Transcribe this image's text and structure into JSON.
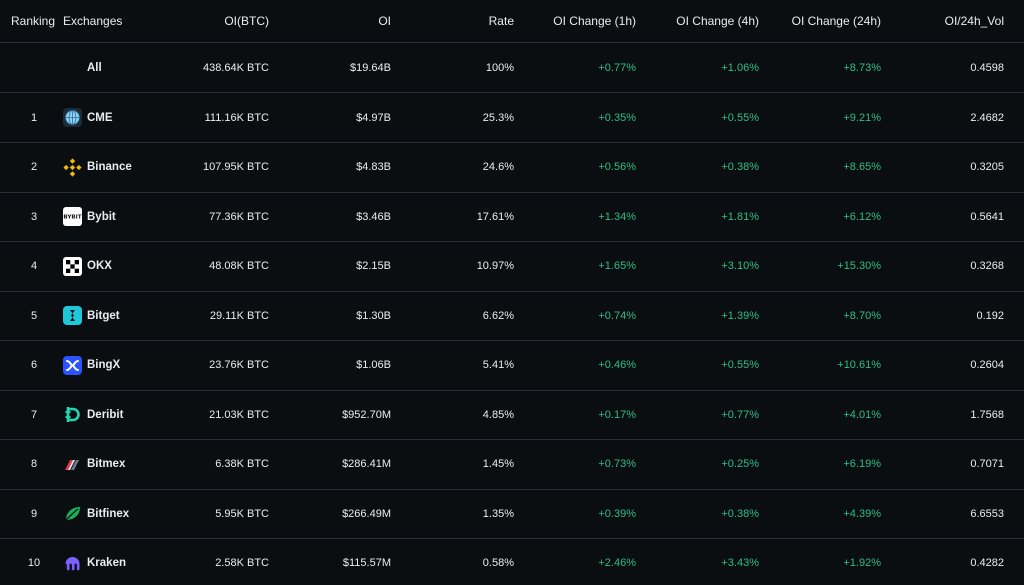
{
  "columns": {
    "ranking": "Ranking",
    "exchanges": "Exchanges",
    "oi_btc": "OI(BTC)",
    "oi": "OI",
    "rate": "Rate",
    "oi_1h": "OI Change (1h)",
    "oi_4h": "OI Change (4h)",
    "oi_24h": "OI Change (24h)",
    "oi_vol": "OI/24h_Vol"
  },
  "all_row": {
    "name": "All",
    "oi_btc": "438.64K BTC",
    "oi": "$19.64B",
    "rate": "100%",
    "oi_1h": "+0.77%",
    "oi_4h": "+1.06%",
    "oi_24h": "+8.73%",
    "oi_vol": "0.4598"
  },
  "rows": [
    {
      "rank": "1",
      "name": "CME",
      "icon": "cme-logo-icon",
      "oi_btc": "111.16K BTC",
      "oi": "$4.97B",
      "rate": "25.3%",
      "oi_1h": "+0.35%",
      "oi_4h": "+0.55%",
      "oi_24h": "+9.21%",
      "oi_vol": "2.4682"
    },
    {
      "rank": "2",
      "name": "Binance",
      "icon": "binance-logo-icon",
      "oi_btc": "107.95K BTC",
      "oi": "$4.83B",
      "rate": "24.6%",
      "oi_1h": "+0.56%",
      "oi_4h": "+0.38%",
      "oi_24h": "+8.65%",
      "oi_vol": "0.3205"
    },
    {
      "rank": "3",
      "name": "Bybit",
      "icon": "bybit-logo-icon",
      "oi_btc": "77.36K BTC",
      "oi": "$3.46B",
      "rate": "17.61%",
      "oi_1h": "+1.34%",
      "oi_4h": "+1.81%",
      "oi_24h": "+6.12%",
      "oi_vol": "0.5641"
    },
    {
      "rank": "4",
      "name": "OKX",
      "icon": "okx-logo-icon",
      "oi_btc": "48.08K BTC",
      "oi": "$2.15B",
      "rate": "10.97%",
      "oi_1h": "+1.65%",
      "oi_4h": "+3.10%",
      "oi_24h": "+15.30%",
      "oi_vol": "0.3268"
    },
    {
      "rank": "5",
      "name": "Bitget",
      "icon": "bitget-logo-icon",
      "oi_btc": "29.11K BTC",
      "oi": "$1.30B",
      "rate": "6.62%",
      "oi_1h": "+0.74%",
      "oi_4h": "+1.39%",
      "oi_24h": "+8.70%",
      "oi_vol": "0.192"
    },
    {
      "rank": "6",
      "name": "BingX",
      "icon": "bingx-logo-icon",
      "oi_btc": "23.76K BTC",
      "oi": "$1.06B",
      "rate": "5.41%",
      "oi_1h": "+0.46%",
      "oi_4h": "+0.55%",
      "oi_24h": "+10.61%",
      "oi_vol": "0.2604"
    },
    {
      "rank": "7",
      "name": "Deribit",
      "icon": "deribit-logo-icon",
      "oi_btc": "21.03K BTC",
      "oi": "$952.70M",
      "rate": "4.85%",
      "oi_1h": "+0.17%",
      "oi_4h": "+0.77%",
      "oi_24h": "+4.01%",
      "oi_vol": "1.7568"
    },
    {
      "rank": "8",
      "name": "Bitmex",
      "icon": "bitmex-logo-icon",
      "oi_btc": "6.38K BTC",
      "oi": "$286.41M",
      "rate": "1.45%",
      "oi_1h": "+0.73%",
      "oi_4h": "+0.25%",
      "oi_24h": "+6.19%",
      "oi_vol": "0.7071"
    },
    {
      "rank": "9",
      "name": "Bitfinex",
      "icon": "bitfinex-logo-icon",
      "oi_btc": "5.95K BTC",
      "oi": "$266.49M",
      "rate": "1.35%",
      "oi_1h": "+0.39%",
      "oi_4h": "+0.38%",
      "oi_24h": "+4.39%",
      "oi_vol": "6.6553"
    },
    {
      "rank": "10",
      "name": "Kraken",
      "icon": "kraken-logo-icon",
      "oi_btc": "2.58K BTC",
      "oi": "$115.57M",
      "rate": "0.58%",
      "oi_1h": "+2.46%",
      "oi_4h": "+3.43%",
      "oi_24h": "+1.92%",
      "oi_vol": "0.4282"
    }
  ],
  "colors": {
    "background": "#0b0e11",
    "divider": "#2b3139",
    "positive": "#2ebd85",
    "text": "#eaecef"
  }
}
